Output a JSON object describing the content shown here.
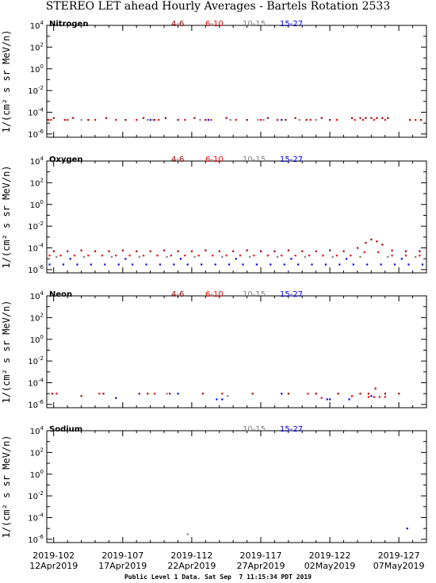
{
  "title": "STEREO LET ahead Hourly Averages - Bartels Rotation 2533",
  "footer": "Public Level 1 Data. Sat Sep  7 11:15:34 PDT 2019",
  "ylabel": "1/(cm² s sr MeV/n)",
  "legend": [
    {
      "label": "4-6",
      "color": "#a00000"
    },
    {
      "label": "6-10",
      "color": "#ff0000"
    },
    {
      "label": "10-15",
      "color": "#808080"
    },
    {
      "label": "15-27",
      "color": "#0000ff"
    }
  ],
  "x_ticks": [
    {
      "doy": "2019-102",
      "date": "12Apr2019"
    },
    {
      "doy": "2019-107",
      "date": "17Apr2019"
    },
    {
      "doy": "2019-112",
      "date": "22Apr2019"
    },
    {
      "doy": "2019-117",
      "date": "27Apr2019"
    },
    {
      "doy": "2019-122",
      "date": "02May2019"
    },
    {
      "doy": "2019-127",
      "date": "07May2019"
    }
  ],
  "y_ticks": [
    {
      "mant": "10",
      "exp": "4"
    },
    {
      "mant": "10",
      "exp": "2"
    },
    {
      "mant": "10",
      "exp": "0"
    },
    {
      "mant": "10",
      "exp": "-2"
    },
    {
      "mant": "10",
      "exp": "-4"
    },
    {
      "mant": "10",
      "exp": "-6"
    }
  ],
  "chart_data": [
    {
      "type": "scatter",
      "title": "Nitrogen",
      "x_axis": "day of year 2019",
      "xlim": [
        101.5,
        129.0
      ],
      "ylim": [
        -6.3,
        4
      ],
      "log_y": true,
      "legend_shown": [
        "4-6",
        "6-10",
        "10-15",
        "15-27"
      ],
      "series": [
        {
          "name": "4-6",
          "color": "#a00000",
          "points": [
            [
              101.6,
              2e-05
            ],
            [
              102.0,
              3e-05
            ],
            [
              102.8,
              2e-05
            ],
            [
              103.4,
              3e-05
            ],
            [
              104.5,
              2e-05
            ],
            [
              105.8,
              3e-05
            ],
            [
              107.2,
              2e-05
            ],
            [
              108.5,
              3e-05
            ],
            [
              109.3,
              2e-05
            ],
            [
              110.1,
              3e-05
            ],
            [
              111.0,
              2e-05
            ],
            [
              112.2,
              3e-05
            ],
            [
              113.0,
              2e-05
            ],
            [
              114.5,
              3e-05
            ],
            [
              116.0,
              2e-05
            ],
            [
              117.5,
              3e-05
            ],
            [
              118.8,
              2e-05
            ],
            [
              119.5,
              3e-05
            ],
            [
              120.3,
              2e-05
            ],
            [
              121.4,
              3e-05
            ],
            [
              122.0,
              2e-05
            ],
            [
              123.6,
              3e-05
            ],
            [
              124.2,
              3e-05
            ],
            [
              124.6,
              3e-05
            ],
            [
              125.0,
              3e-05
            ],
            [
              125.4,
              3e-05
            ],
            [
              125.8,
              3e-05
            ],
            [
              126.2,
              3e-05
            ],
            [
              127.8,
              2e-05
            ],
            [
              128.6,
              2e-05
            ]
          ]
        },
        {
          "name": "6-10",
          "color": "#ff0000",
          "points": [
            [
              101.8,
              2e-05
            ],
            [
              103.0,
              2e-05
            ],
            [
              105.0,
              2e-05
            ],
            [
              106.5,
              2e-05
            ],
            [
              108.0,
              2e-05
            ],
            [
              109.6,
              2e-05
            ],
            [
              111.5,
              2e-05
            ],
            [
              113.4,
              2e-05
            ],
            [
              115.2,
              2e-05
            ],
            [
              117.0,
              2e-05
            ],
            [
              118.2,
              2e-05
            ],
            [
              120.6,
              2e-05
            ],
            [
              122.5,
              2e-05
            ],
            [
              123.8,
              2e-05
            ],
            [
              124.4,
              2e-05
            ],
            [
              125.2,
              2e-05
            ],
            [
              126.0,
              2e-05
            ],
            [
              128.2,
              2e-05
            ]
          ]
        },
        {
          "name": "10-15",
          "color": "#808080",
          "points": [
            [
              104.0,
              2e-05
            ],
            [
              108.8,
              2e-05
            ],
            [
              109.2,
              2e-05
            ],
            [
              112.6,
              2e-05
            ],
            [
              114.8,
              2e-05
            ],
            [
              116.8,
              2e-05
            ],
            [
              117.2,
              2e-05
            ],
            [
              119.8,
              2e-05
            ],
            [
              121.0,
              2e-05
            ]
          ]
        },
        {
          "name": "15-27",
          "color": "#0000ff",
          "points": [
            [
              109.0,
              2e-05
            ],
            [
              113.2,
              2e-05
            ],
            [
              118.5,
              2e-05
            ]
          ]
        }
      ]
    },
    {
      "type": "scatter",
      "title": "Oxygen",
      "x_axis": "day of year 2019",
      "xlim": [
        101.5,
        129.0
      ],
      "ylim": [
        -6.3,
        4
      ],
      "log_y": true,
      "legend_shown": [
        "4-6",
        "6-10",
        "10-15",
        "15-27"
      ],
      "series": [
        {
          "name": "4-6",
          "color": "#a00000",
          "points": [
            [
              102.0,
              5e-05
            ],
            [
              103.0,
              5e-05
            ],
            [
              104.0,
              6e-05
            ],
            [
              105.0,
              5e-05
            ],
            [
              106.0,
              5e-05
            ],
            [
              107.0,
              6e-05
            ],
            [
              108.0,
              5e-05
            ],
            [
              109.0,
              5e-05
            ],
            [
              110.0,
              6e-05
            ],
            [
              111.0,
              5e-05
            ],
            [
              112.0,
              5e-05
            ],
            [
              113.0,
              6e-05
            ],
            [
              114.0,
              5e-05
            ],
            [
              115.0,
              5e-05
            ],
            [
              116.0,
              6e-05
            ],
            [
              117.0,
              5e-05
            ],
            [
              118.0,
              5e-05
            ],
            [
              119.0,
              6e-05
            ],
            [
              120.0,
              5e-05
            ],
            [
              121.0,
              5e-05
            ],
            [
              122.0,
              6e-05
            ],
            [
              123.0,
              5e-05
            ],
            [
              124.0,
              0.0001
            ],
            [
              124.6,
              0.0003
            ],
            [
              125.0,
              0.0006
            ],
            [
              125.4,
              0.0004
            ],
            [
              125.8,
              0.0002
            ],
            [
              126.5,
              6e-05
            ],
            [
              127.5,
              5e-05
            ],
            [
              128.5,
              5e-05
            ]
          ]
        },
        {
          "name": "6-10",
          "color": "#ff0000",
          "points": [
            [
              101.7,
              2e-05
            ],
            [
              102.5,
              2e-05
            ],
            [
              103.5,
              2e-05
            ],
            [
              104.5,
              2e-05
            ],
            [
              105.5,
              2e-05
            ],
            [
              106.5,
              2e-05
            ],
            [
              107.5,
              2e-05
            ],
            [
              108.5,
              2e-05
            ],
            [
              109.5,
              2e-05
            ],
            [
              110.5,
              2e-05
            ],
            [
              111.5,
              2e-05
            ],
            [
              112.5,
              2e-05
            ],
            [
              113.5,
              2e-05
            ],
            [
              114.5,
              2e-05
            ],
            [
              115.5,
              2e-05
            ],
            [
              116.5,
              2e-05
            ],
            [
              117.5,
              2e-05
            ],
            [
              118.5,
              2e-05
            ],
            [
              119.5,
              2e-05
            ],
            [
              120.5,
              2e-05
            ],
            [
              121.5,
              2e-05
            ],
            [
              122.5,
              2e-05
            ],
            [
              123.5,
              2e-05
            ],
            [
              124.5,
              4e-05
            ],
            [
              125.5,
              4e-05
            ],
            [
              126.5,
              2e-05
            ],
            [
              127.5,
              2e-05
            ],
            [
              128.5,
              2e-05
            ]
          ]
        },
        {
          "name": "10-15",
          "color": "#808080",
          "points": [
            [
              102.2,
              1.5e-05
            ],
            [
              104.2,
              1.5e-05
            ],
            [
              106.2,
              1.5e-05
            ],
            [
              108.2,
              1.5e-05
            ],
            [
              110.2,
              1.5e-05
            ],
            [
              112.2,
              1.5e-05
            ],
            [
              114.2,
              1.5e-05
            ],
            [
              116.2,
              1.5e-05
            ],
            [
              118.2,
              1.5e-05
            ],
            [
              120.2,
              1.5e-05
            ],
            [
              122.2,
              1.5e-05
            ],
            [
              124.2,
              1.5e-05
            ],
            [
              126.2,
              1.5e-05
            ],
            [
              128.2,
              1.5e-05
            ]
          ]
        },
        {
          "name": "15-27",
          "color": "#0000ff",
          "points": [
            [
              101.7,
              3e-06
            ],
            [
              102.7,
              3e-06
            ],
            [
              103.7,
              3e-06
            ],
            [
              104.7,
              3e-06
            ],
            [
              105.7,
              3e-06
            ],
            [
              106.7,
              3e-06
            ],
            [
              107.7,
              3e-06
            ],
            [
              108.7,
              3e-06
            ],
            [
              109.7,
              3e-06
            ],
            [
              110.7,
              3e-06
            ],
            [
              111.7,
              3e-06
            ],
            [
              112.7,
              3e-06
            ],
            [
              113.7,
              3e-06
            ],
            [
              114.7,
              3e-06
            ],
            [
              115.7,
              3e-06
            ],
            [
              116.7,
              3e-06
            ],
            [
              117.7,
              3e-06
            ],
            [
              118.7,
              3e-06
            ],
            [
              119.7,
              3e-06
            ],
            [
              120.7,
              3e-06
            ],
            [
              121.7,
              3e-06
            ],
            [
              122.7,
              3e-06
            ],
            [
              123.7,
              3e-06
            ],
            [
              124.7,
              3e-06
            ],
            [
              125.7,
              3e-06
            ],
            [
              126.7,
              3e-06
            ],
            [
              127.7,
              3e-06
            ],
            [
              128.7,
              3e-06
            ],
            [
              103.2,
              1e-05
            ],
            [
              107.2,
              1e-05
            ],
            [
              111.2,
              1e-05
            ],
            [
              115.2,
              1e-05
            ],
            [
              119.2,
              1e-05
            ],
            [
              123.2,
              1e-05
            ],
            [
              127.2,
              1e-05
            ]
          ]
        }
      ]
    },
    {
      "type": "scatter",
      "title": "Neon",
      "x_axis": "day of year 2019",
      "xlim": [
        101.5,
        129.0
      ],
      "ylim": [
        -6.3,
        4
      ],
      "log_y": true,
      "legend_shown": [
        "4-6",
        "6-10",
        "10-15",
        "15-27"
      ],
      "series": [
        {
          "name": "4-6",
          "color": "#a00000",
          "points": [
            [
              101.9,
              1e-05
            ],
            [
              104.0,
              6e-06
            ],
            [
              105.6,
              1e-05
            ],
            [
              108.2,
              1e-05
            ],
            [
              108.8,
              1e-05
            ],
            [
              110.4,
              1e-05
            ],
            [
              112.8,
              1e-05
            ],
            [
              116.4,
              1e-05
            ],
            [
              119.0,
              1e-05
            ],
            [
              121.0,
              1e-05
            ],
            [
              122.6,
              1e-05
            ],
            [
              124.2,
              1e-05
            ],
            [
              124.8,
              1e-05
            ],
            [
              125.3,
              3e-05
            ],
            [
              126.0,
              1e-05
            ],
            [
              127.0,
              1e-05
            ]
          ]
        },
        {
          "name": "6-10",
          "color": "#ff0000",
          "points": [
            [
              102.2,
              1e-05
            ],
            [
              105.3,
              1e-05
            ],
            [
              109.3,
              1e-05
            ],
            [
              114.2,
              1e-05
            ],
            [
              120.4,
              1e-05
            ],
            [
              121.4,
              4e-06
            ],
            [
              123.6,
              6e-06
            ],
            [
              124.8,
              5e-06
            ],
            [
              125.2,
              5e-06
            ],
            [
              125.6,
              5e-06
            ],
            [
              126.0,
              5e-06
            ]
          ]
        },
        {
          "name": "10-15",
          "color": "#808080",
          "points": [
            [
              110.2,
              1e-05
            ],
            [
              114.6,
              6e-06
            ]
          ]
        },
        {
          "name": "15-27",
          "color": "#0000ff",
          "points": [
            [
              106.5,
              4e-06
            ],
            [
              111.0,
              1e-05
            ],
            [
              113.8,
              3e-06
            ],
            [
              114.2,
              3e-06
            ],
            [
              118.5,
              1e-05
            ],
            [
              121.8,
              3e-06
            ],
            [
              122.0,
              3e-06
            ],
            [
              123.4,
              3e-06
            ],
            [
              125.0,
              6e-06
            ]
          ]
        }
      ]
    },
    {
      "type": "scatter",
      "title": "Sodium",
      "x_axis": "day of year 2019",
      "xlim": [
        101.5,
        129.0
      ],
      "ylim": [
        -6.3,
        4
      ],
      "log_y": true,
      "legend_shown": [
        "10-15",
        "15-27"
      ],
      "series": [
        {
          "name": "10-15",
          "color": "#808080",
          "points": [
            [
              111.7,
              3e-06
            ]
          ]
        },
        {
          "name": "15-27",
          "color": "#0000ff",
          "points": [
            [
              127.6,
              1e-05
            ]
          ]
        }
      ]
    }
  ]
}
